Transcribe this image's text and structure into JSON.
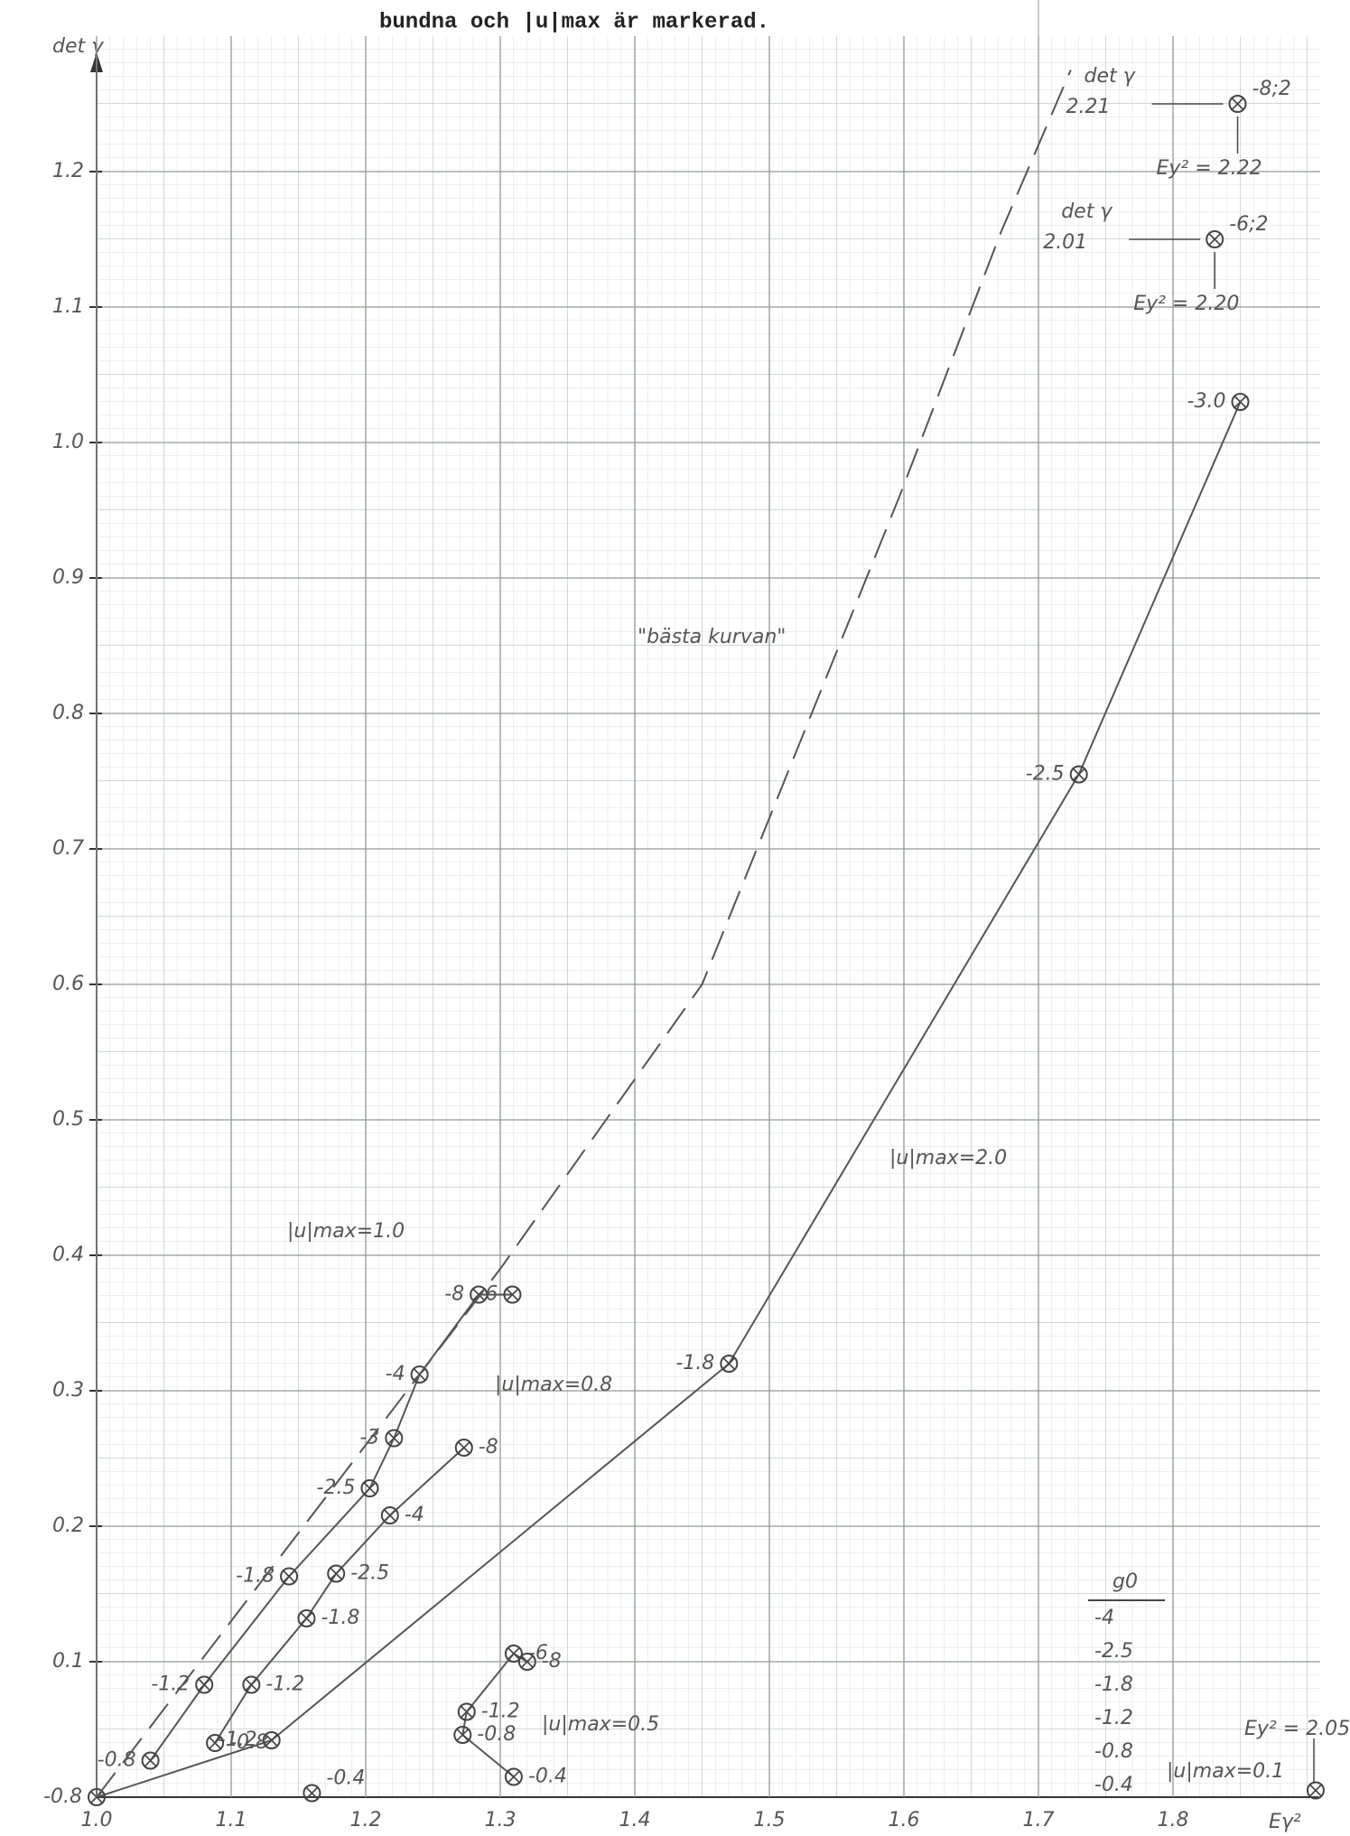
{
  "chart_data": {
    "type": "line",
    "title": "bundna och |u|max är markerad.",
    "xlabel": "Eγ²",
    "ylabel": "det γ",
    "xlim": [
      1.0,
      1.9
    ],
    "ylim": [
      0,
      1.3
    ],
    "xticks": [
      {
        "value": 1.0,
        "label": "1.0"
      },
      1.1,
      1.2,
      1.3,
      1.4,
      1.5,
      1.6,
      1.7,
      1.8
    ],
    "yticks": [
      0.1,
      0.2,
      0.3,
      0.4,
      0.5,
      0.6,
      0.7,
      0.8,
      0.9,
      {
        "value": 1.0,
        "label": "1.0"
      },
      1.1,
      1.2
    ],
    "grid": true,
    "color": "#555555",
    "series": [
      {
        "name": "|u|max=2.0",
        "x": [
          1.0,
          1.13,
          1.47,
          1.73,
          1.85
        ],
        "values": [
          0,
          0.042,
          0.32,
          0.755,
          1.03
        ],
        "point_labels": [
          "-0.8",
          "-1.2",
          "-1.8",
          "-2.5",
          "-3.0"
        ]
      },
      {
        "name": "|u|max=1.0",
        "x": [
          1.04,
          1.08,
          1.143,
          1.203,
          1.221,
          1.24,
          1.284,
          1.309
        ],
        "values": [
          0.027,
          0.083,
          0.163,
          0.228,
          0.265,
          0.312,
          0.371,
          0.371
        ],
        "point_labels": [
          "-0.8",
          "-1.2",
          "-1.8",
          "-2.5",
          "-3",
          "-4",
          "-8",
          "-6"
        ]
      },
      {
        "name": "|u|max=0.8",
        "x": [
          1.088,
          1.115,
          1.156,
          1.178,
          1.218,
          1.273
        ],
        "values": [
          0.04,
          0.083,
          0.132,
          0.165,
          0.208,
          0.258
        ],
        "point_labels": [
          "-0.8",
          "-1.2",
          "-1.8",
          "-2.5",
          "-4",
          "-8"
        ]
      },
      {
        "name": "|u|max=0.5",
        "x": [
          1.31,
          1.272,
          1.275,
          1.31,
          1.32
        ],
        "values": [
          0.015,
          0.046,
          0.063,
          0.106,
          0.1
        ],
        "point_labels": [
          "-0.4",
          "-0.8",
          "-1.2",
          "-6",
          "-8"
        ]
      },
      {
        "name": "|u|max=0.1",
        "x": [
          1.906
        ],
        "values": [
          0.005
        ]
      },
      {
        "name": "\"bästa kurvan\"",
        "x": [
          1.0,
          1.3,
          1.45,
          1.597,
          1.672,
          1.724
        ],
        "values": [
          0,
          0.39,
          0.6,
          0.961,
          1.155,
          1.275
        ],
        "dashed": true,
        "markers": false
      }
    ],
    "points": [
      {
        "x": 1.16,
        "y": 0.003,
        "label": "-0.4"
      },
      {
        "x": 1.848,
        "y": 1.25,
        "label": "-8;2",
        "det_label": "det γ",
        "det": "2.21",
        "ey": "Ey² = 2.22"
      },
      {
        "x": 1.831,
        "y": 1.15,
        "label": "-6;2",
        "det_label": "det γ",
        "det": "2.01",
        "ey": "Ey² = 2.20"
      }
    ],
    "ey_note": "Ey² = 2.05",
    "g0_table": {
      "header": "g0",
      "rows": [
        "-4",
        "-2.5",
        "-1.8",
        "-1.2",
        "-0.8",
        "-0.4"
      ]
    }
  }
}
